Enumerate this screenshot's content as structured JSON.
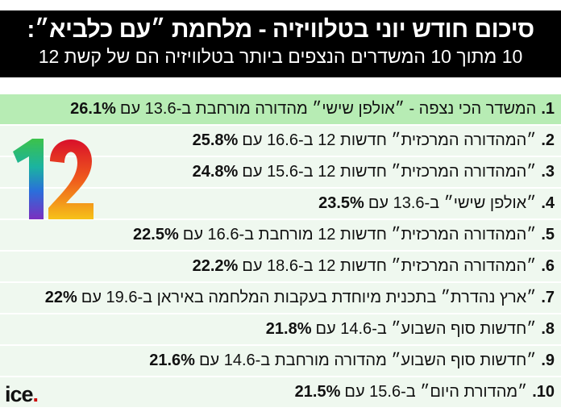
{
  "header": {
    "title": "סיכום חודש יוני בטלוויזיה - מלחמת ״עם כלביא״:",
    "subtitle": "10 מתוך 10 המשדרים הנצפים ביותר בטלוויזיה הם של קשת 12"
  },
  "rows": [
    {
      "num": "1.",
      "text": "המשדר הכי נצפה - ״אולפן שישי״ מהדורה מורחבת ב-13.6 עם",
      "pct": "26.1%",
      "highlight": true
    },
    {
      "num": "2.",
      "text": "״המהדורה המרכזית״ חדשות 12 ב-16.6 עם",
      "pct": "25.8%"
    },
    {
      "num": "3.",
      "text": "״המהדורה המרכזית״ חדשות 12 ב-15.6 עם",
      "pct": "24.8%"
    },
    {
      "num": "4.",
      "text": "״אולפן שישי״ ב-13.6 עם",
      "pct": "23.5%"
    },
    {
      "num": "5.",
      "text": "״המהדורה המרכזית״ חדשות 12 מורחבת ב-16.6 עם",
      "pct": "22.5%"
    },
    {
      "num": "6.",
      "text": "״המהדורה המרכזית״ חדשות 12 ב-18.6 עם",
      "pct": "22.2%"
    },
    {
      "num": "7.",
      "text": "״ארץ נהדרת״ בתכנית מיוחדת בעקבות המלחמה באיראן ב-19.6 עם",
      "pct": "22%"
    },
    {
      "num": "8.",
      "text": "״חדשות סוף השבוע״ ב-14.6 עם",
      "pct": "21.8%"
    },
    {
      "num": "9.",
      "text": "״חדשות סוף השבוע״ מהדורה מורחבת ב-14.6 עם",
      "pct": "21.6%"
    },
    {
      "num": "10.",
      "text": "״מהדורת היום״ ב-15.6 עם",
      "pct": "21.5%"
    }
  ],
  "logos": {
    "channel": "12",
    "publisher": "ice"
  },
  "colors": {
    "highlight_row": "#b7ecb4",
    "row": "#eff8ef",
    "header_bg": "#000000",
    "ice_dot": "#cc0000"
  }
}
